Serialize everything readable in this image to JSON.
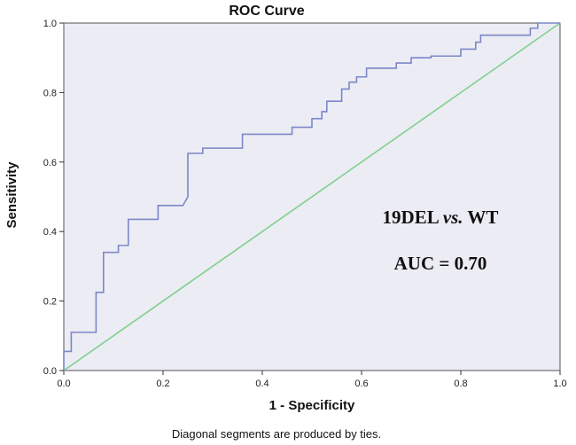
{
  "chart_data": {
    "type": "line",
    "title": "ROC Curve",
    "xlabel": "1 - Specificity",
    "ylabel": "Sensitivity",
    "footnote": "Diagonal segments are produced by ties.",
    "xlim": [
      0.0,
      1.0
    ],
    "ylim": [
      0.0,
      1.0
    ],
    "xticks": [
      "0.0",
      "0.2",
      "0.4",
      "0.6",
      "0.8",
      "1.0"
    ],
    "yticks": [
      "0.0",
      "0.2",
      "0.4",
      "0.6",
      "0.8",
      "1.0"
    ],
    "grid": false,
    "background": "#ececf4",
    "annotation": {
      "line1_part1": "19DEL ",
      "line1_italic": "vs.",
      "line1_part2": " WT",
      "line2": "AUC = 0.70"
    },
    "series": [
      {
        "name": "ROC",
        "color": "#7b87c8",
        "x": [
          0.0,
          0.0,
          0.015,
          0.015,
          0.065,
          0.065,
          0.08,
          0.08,
          0.11,
          0.11,
          0.13,
          0.13,
          0.19,
          0.19,
          0.24,
          0.25,
          0.25,
          0.28,
          0.28,
          0.36,
          0.36,
          0.46,
          0.46,
          0.5,
          0.5,
          0.52,
          0.52,
          0.53,
          0.53,
          0.56,
          0.56,
          0.575,
          0.575,
          0.59,
          0.59,
          0.61,
          0.61,
          0.67,
          0.67,
          0.7,
          0.7,
          0.74,
          0.74,
          0.8,
          0.8,
          0.83,
          0.83,
          0.84,
          0.84,
          0.94,
          0.94,
          0.955,
          0.955,
          1.0
        ],
        "y": [
          0.0,
          0.055,
          0.055,
          0.11,
          0.11,
          0.225,
          0.225,
          0.34,
          0.34,
          0.36,
          0.36,
          0.435,
          0.435,
          0.475,
          0.475,
          0.5,
          0.625,
          0.625,
          0.64,
          0.64,
          0.68,
          0.68,
          0.7,
          0.7,
          0.725,
          0.725,
          0.745,
          0.745,
          0.775,
          0.775,
          0.81,
          0.81,
          0.83,
          0.83,
          0.845,
          0.845,
          0.87,
          0.87,
          0.885,
          0.885,
          0.9,
          0.9,
          0.905,
          0.905,
          0.925,
          0.925,
          0.945,
          0.945,
          0.965,
          0.965,
          0.985,
          0.985,
          1.0,
          1.0
        ]
      },
      {
        "name": "Reference line",
        "color": "#7fd18c",
        "x": [
          0.0,
          1.0
        ],
        "y": [
          0.0,
          1.0
        ]
      }
    ]
  }
}
